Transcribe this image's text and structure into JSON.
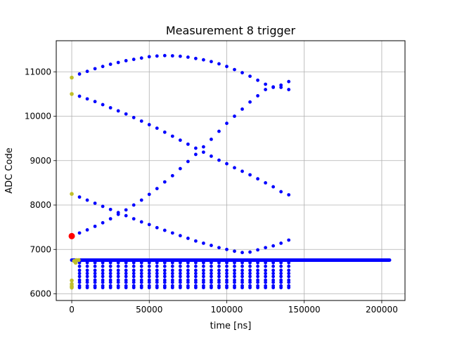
{
  "chart_data": {
    "type": "scatter",
    "title": "Measurement 8 trigger",
    "xlabel": "time [ns]",
    "ylabel": "ADC Code",
    "xlim": [
      -10000,
      215000
    ],
    "ylim": [
      5850,
      11700
    ],
    "grid": true,
    "x_ticks": [
      0,
      50000,
      100000,
      150000,
      200000
    ],
    "x_tick_labels": [
      "0",
      "50000",
      "100000",
      "150000",
      "200000"
    ],
    "y_ticks": [
      6000,
      7000,
      8000,
      9000,
      10000,
      11000
    ],
    "y_tick_labels": [
      "6000",
      "7000",
      "8000",
      "9000",
      "10000",
      "11000"
    ],
    "colors": {
      "primary": "#0000ff",
      "initial": "#bfbf2a",
      "trigger": "#ff0000"
    },
    "series": [
      {
        "kind": "curve",
        "color": "#0000ff",
        "x": [
          5000,
          10000,
          15000,
          20000,
          25000,
          30000,
          35000,
          40000,
          45000,
          50000,
          55000,
          60000,
          65000,
          70000,
          75000,
          80000,
          85000,
          90000,
          95000,
          100000,
          105000,
          110000,
          115000,
          120000,
          125000,
          130000,
          135000,
          140000
        ],
        "y": [
          10950,
          11010,
          11070,
          11120,
          11170,
          11210,
          11250,
          11280,
          11310,
          11340,
          11355,
          11365,
          11360,
          11350,
          11330,
          11300,
          11270,
          11230,
          11180,
          11120,
          11050,
          10980,
          10900,
          10810,
          10720,
          10650,
          10700,
          10780
        ]
      },
      {
        "kind": "curve",
        "color": "#0000ff",
        "x": [
          5000,
          10000,
          15000,
          20000,
          25000,
          30000,
          35000,
          40000,
          45000,
          50000,
          55000,
          60000,
          65000,
          70000,
          75000,
          80000,
          85000,
          90000,
          95000,
          100000,
          105000,
          110000,
          115000,
          120000,
          125000,
          130000,
          135000,
          140000
        ],
        "y": [
          10450,
          10390,
          10330,
          10260,
          10190,
          10120,
          10050,
          9970,
          9890,
          9810,
          9730,
          9640,
          9550,
          9460,
          9370,
          9280,
          9190,
          9100,
          9010,
          8930,
          8840,
          8760,
          8680,
          8590,
          8500,
          8410,
          8300,
          8230
        ]
      },
      {
        "kind": "curve",
        "color": "#0000ff",
        "x": [
          5000,
          10000,
          15000,
          20000,
          25000,
          30000,
          35000,
          40000,
          45000,
          50000,
          55000,
          60000,
          65000,
          70000,
          75000,
          80000,
          85000,
          90000,
          95000,
          100000,
          105000,
          110000,
          115000,
          120000,
          125000,
          130000,
          135000,
          140000
        ],
        "y": [
          7370,
          7440,
          7520,
          7600,
          7690,
          7790,
          7890,
          8000,
          8110,
          8240,
          8370,
          8520,
          8660,
          8820,
          8980,
          9140,
          9310,
          9480,
          9660,
          9840,
          10000,
          10160,
          10320,
          10460,
          10600,
          10660,
          10650,
          10600
        ]
      },
      {
        "kind": "curve",
        "color": "#0000ff",
        "x": [
          5000,
          10000,
          15000,
          20000,
          25000,
          30000,
          35000,
          40000,
          45000,
          50000,
          55000,
          60000,
          65000,
          70000,
          75000,
          80000,
          85000,
          90000,
          95000,
          100000,
          105000,
          110000,
          115000,
          120000,
          125000,
          130000,
          135000,
          140000
        ],
        "y": [
          8180,
          8110,
          8040,
          7970,
          7900,
          7830,
          7760,
          7690,
          7620,
          7560,
          7490,
          7430,
          7370,
          7310,
          7250,
          7190,
          7140,
          7090,
          7040,
          7000,
          6960,
          6930,
          6940,
          6990,
          7040,
          7080,
          7140,
          7210
        ]
      },
      {
        "kind": "band",
        "color": "#0000ff",
        "x_start": 0,
        "x_end": 205000,
        "y": 6760
      },
      {
        "kind": "rows",
        "color": "#0000ff",
        "x_start": 5000,
        "x_end": 140000,
        "step": 5000,
        "y": [
          6700,
          6620,
          6530,
          6460,
          6390,
          6310,
          6260,
          6180,
          6140
        ]
      },
      {
        "kind": "points",
        "color": "#bfbf2a",
        "x": [
          0,
          0,
          0,
          0,
          0,
          0,
          0,
          1500,
          3000,
          4500,
          2500
        ],
        "y": [
          10870,
          10500,
          8250,
          6300,
          6220,
          6170,
          6140,
          6740,
          6760,
          6760,
          6700
        ]
      },
      {
        "kind": "points",
        "color": "#ff0000",
        "x": [
          0
        ],
        "y": [
          7300
        ]
      }
    ]
  }
}
